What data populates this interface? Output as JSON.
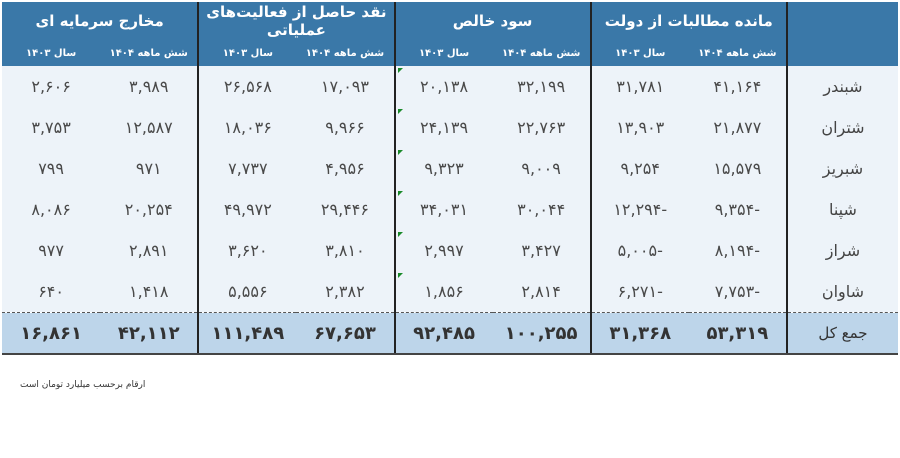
{
  "headers": {
    "groups": [
      "مانده مطالبات از دولت",
      "سود خالص",
      "نقد حاصل از فعالیت‌های عملیاتی",
      "مخارج سرمایه ای"
    ],
    "sub": [
      "شش ماهه ۱۴۰۴",
      "سال ۱۴۰۳"
    ]
  },
  "rows": [
    {
      "name": "شبندر",
      "values": [
        "۴۱,۱۶۴",
        "۳۱,۷۸۱",
        "۳۲,۱۹۹",
        "۲۰,۱۳۸",
        "۱۷,۰۹۳",
        "۲۶,۵۶۸",
        "۳,۹۸۹",
        "۲,۶۰۶"
      ]
    },
    {
      "name": "شتران",
      "values": [
        "۲۱,۸۷۷",
        "۱۳,۹۰۳",
        "۲۲,۷۶۳",
        "۲۴,۱۳۹",
        "۹,۹۶۶",
        "۱۸,۰۳۶",
        "۱۲,۵۸۷",
        "۳,۷۵۳"
      ]
    },
    {
      "name": "شبریز",
      "values": [
        "۱۵,۵۷۹",
        "۹,۲۵۴",
        "۹,۰۰۹",
        "۹,۳۲۳",
        "۴,۹۵۶",
        "۷,۷۳۷",
        "۹۷۱",
        "۷۹۹"
      ]
    },
    {
      "name": "شپنا",
      "values": [
        "-۹,۳۵۴",
        "-۱۲,۲۹۴",
        "۳۰,۰۴۴",
        "۳۴,۰۳۱",
        "۲۹,۴۴۶",
        "۴۹,۹۷۲",
        "۲۰,۲۵۴",
        "۸,۰۸۶"
      ]
    },
    {
      "name": "شراز",
      "values": [
        "-۸,۱۹۴",
        "-۵,۰۰۵",
        "۳,۴۲۷",
        "۲,۹۹۷",
        "۳,۸۱۰",
        "۳,۶۲۰",
        "۲,۸۹۱",
        "۹۷۷"
      ]
    },
    {
      "name": "شاوان",
      "values": [
        "-۷,۷۵۳",
        "-۶,۲۷۱",
        "۲,۸۱۴",
        "۱,۸۵۶",
        "۲,۳۸۲",
        "۵,۵۵۶",
        "۱,۴۱۸",
        "۶۴۰"
      ]
    }
  ],
  "total": {
    "name": "جمع کل",
    "values": [
      "۵۳,۳۱۹",
      "۳۱,۳۶۸",
      "۱۰۰,۲۵۵",
      "۹۲,۴۸۵",
      "۶۷,۶۵۳",
      "۱۱۱,۴۸۹",
      "۴۲,۱۱۲",
      "۱۶,۸۶۱"
    ]
  },
  "note": "ارقام برحسب میلیارد تومان است",
  "colors": {
    "header": "#3a78a8",
    "body": "#edf3f9",
    "total": "#bdd5ea",
    "comment_marker": "#1a8a2a"
  }
}
